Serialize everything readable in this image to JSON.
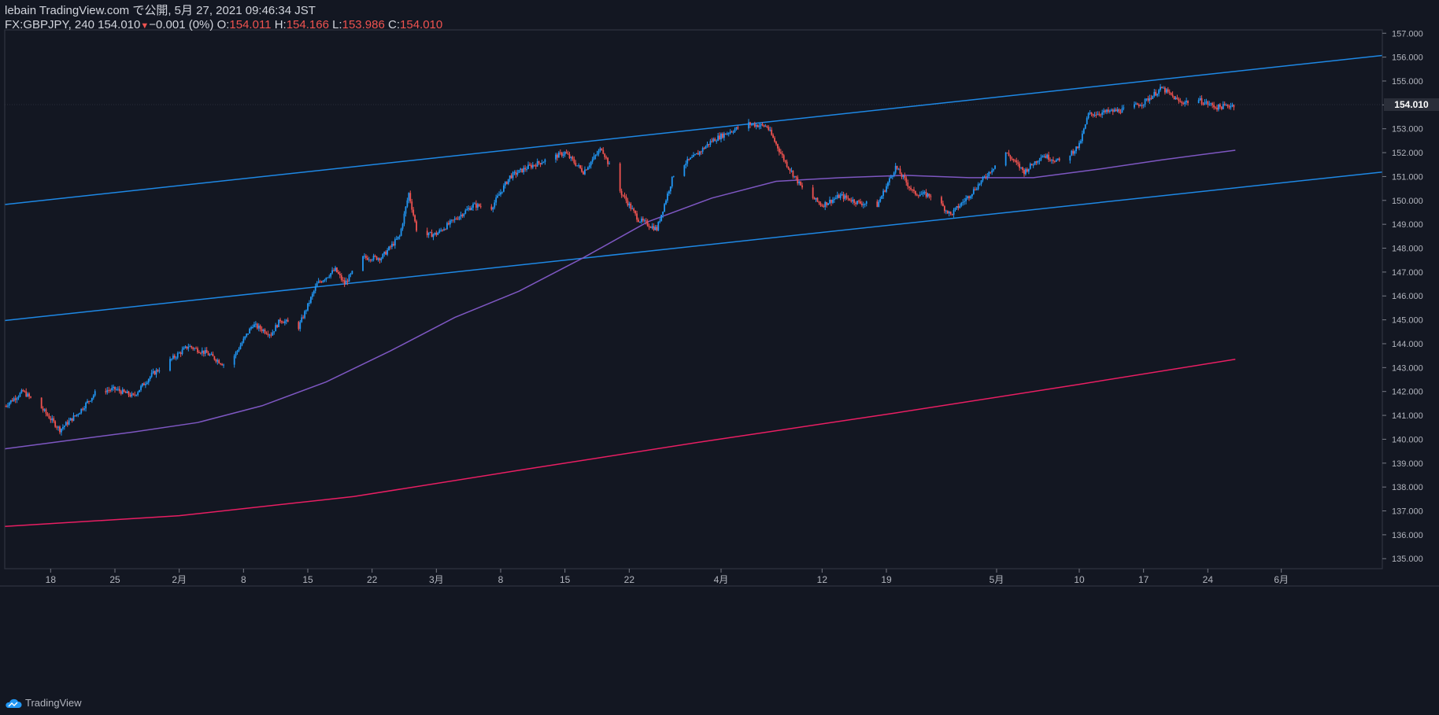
{
  "header": {
    "line1": "lebain TradingView.com で公開, 5月 27, 2021 09:46:34 JST",
    "symbol": "FX:GBPJPY, 240",
    "last": "154.010",
    "change": "−0.001 (0%)",
    "o_label": "O:",
    "o_value": "154.011",
    "h_label": "H:",
    "h_value": "154.166",
    "l_label": "L:",
    "l_value": "153.986",
    "c_label": "C:",
    "c_value": "154.010"
  },
  "footer": {
    "brand": "TradingView"
  },
  "colors": {
    "background": "#131722",
    "up": "#2196f3",
    "down": "#ef5350",
    "channel": "#1e88e5",
    "ma_fast": "#7e57c2",
    "ma_slow": "#e91e63",
    "axis_text": "#b2b5be",
    "grid": "#363a45"
  },
  "chart_data": {
    "type": "candlestick",
    "title": "FX:GBPJPY, 240",
    "xlabel": "",
    "ylabel": "",
    "ylim": [
      134.58,
      157.14
    ],
    "x_domain": [
      "2021-01-13",
      "2021-06-12"
    ],
    "y_ticks": [
      "135.000",
      "136.000",
      "137.000",
      "138.000",
      "139.000",
      "140.000",
      "141.000",
      "142.000",
      "143.000",
      "144.000",
      "145.000",
      "146.000",
      "147.000",
      "148.000",
      "149.000",
      "150.000",
      "151.000",
      "152.000",
      "153.000",
      "154.000",
      "155.000",
      "156.000",
      "157.000"
    ],
    "x_ticks": [
      {
        "date": "2021-01-18",
        "label": "18"
      },
      {
        "date": "2021-01-25",
        "label": "25"
      },
      {
        "date": "2021-02-01",
        "label": "2月"
      },
      {
        "date": "2021-02-08",
        "label": "8"
      },
      {
        "date": "2021-02-15",
        "label": "15"
      },
      {
        "date": "2021-02-22",
        "label": "22"
      },
      {
        "date": "2021-03-01",
        "label": "3月"
      },
      {
        "date": "2021-03-08",
        "label": "8"
      },
      {
        "date": "2021-03-15",
        "label": "15"
      },
      {
        "date": "2021-03-22",
        "label": "22"
      },
      {
        "date": "2021-04-01",
        "label": "4月"
      },
      {
        "date": "2021-04-12",
        "label": "12"
      },
      {
        "date": "2021-04-19",
        "label": "19"
      },
      {
        "date": "2021-05-01",
        "label": "5月"
      },
      {
        "date": "2021-05-10",
        "label": "10"
      },
      {
        "date": "2021-05-17",
        "label": "17"
      },
      {
        "date": "2021-05-24",
        "label": "24"
      },
      {
        "date": "2021-06-01",
        "label": "6月"
      }
    ],
    "last_price": "154.010",
    "price_path": [
      [
        "2021-01-13",
        141.4
      ],
      [
        "2021-01-15",
        142.0
      ],
      [
        "2021-01-17",
        141.3
      ],
      [
        "2021-01-19",
        140.4
      ],
      [
        "2021-01-21",
        141.1
      ],
      [
        "2021-01-23",
        142.0
      ],
      [
        "2021-01-25",
        142.1
      ],
      [
        "2021-01-27",
        141.8
      ],
      [
        "2021-01-29",
        142.7
      ],
      [
        "2021-01-31",
        143.3
      ],
      [
        "2021-02-02",
        143.9
      ],
      [
        "2021-02-04",
        143.6
      ],
      [
        "2021-02-06",
        143.1
      ],
      [
        "2021-02-07",
        143.5
      ],
      [
        "2021-02-09",
        144.8
      ],
      [
        "2021-02-11",
        144.4
      ],
      [
        "2021-02-12",
        145.0
      ],
      [
        "2021-02-14",
        144.7
      ],
      [
        "2021-02-16",
        146.5
      ],
      [
        "2021-02-18",
        147.1
      ],
      [
        "2021-02-19",
        146.5
      ],
      [
        "2021-02-21",
        147.6
      ],
      [
        "2021-02-23",
        147.6
      ],
      [
        "2021-02-25",
        148.5
      ],
      [
        "2021-02-26",
        150.3
      ],
      [
        "2021-02-27",
        148.5
      ],
      [
        "2021-03-01",
        148.6
      ],
      [
        "2021-03-03",
        149.2
      ],
      [
        "2021-03-05",
        149.8
      ],
      [
        "2021-03-07",
        149.7
      ],
      [
        "2021-03-09",
        151.0
      ],
      [
        "2021-03-11",
        151.4
      ],
      [
        "2021-03-13",
        151.7
      ],
      [
        "2021-03-15",
        152.0
      ],
      [
        "2021-03-17",
        151.2
      ],
      [
        "2021-03-19",
        152.2
      ],
      [
        "2021-03-21",
        150.4
      ],
      [
        "2021-03-23",
        149.2
      ],
      [
        "2021-03-25",
        148.8
      ],
      [
        "2021-03-27",
        151.3
      ],
      [
        "2021-03-29",
        151.8
      ],
      [
        "2021-03-31",
        152.5
      ],
      [
        "2021-04-02",
        152.9
      ],
      [
        "2021-04-04",
        153.2
      ],
      [
        "2021-04-06",
        153.1
      ],
      [
        "2021-04-08",
        151.6
      ],
      [
        "2021-04-10",
        150.4
      ],
      [
        "2021-04-12",
        149.8
      ],
      [
        "2021-04-14",
        150.2
      ],
      [
        "2021-04-16",
        149.9
      ],
      [
        "2021-04-18",
        149.8
      ],
      [
        "2021-04-20",
        151.4
      ],
      [
        "2021-04-22",
        150.3
      ],
      [
        "2021-04-24",
        150.2
      ],
      [
        "2021-04-26",
        149.4
      ],
      [
        "2021-04-28",
        150.2
      ],
      [
        "2021-04-30",
        151.1
      ],
      [
        "2021-05-02",
        152.0
      ],
      [
        "2021-05-04",
        151.2
      ],
      [
        "2021-05-06",
        151.9
      ],
      [
        "2021-05-08",
        151.6
      ],
      [
        "2021-05-10",
        152.3
      ],
      [
        "2021-05-11",
        153.6
      ],
      [
        "2021-05-13",
        153.7
      ],
      [
        "2021-05-15",
        153.8
      ],
      [
        "2021-05-17",
        154.1
      ],
      [
        "2021-05-19",
        154.7
      ],
      [
        "2021-05-21",
        154.1
      ],
      [
        "2021-05-23",
        154.2
      ],
      [
        "2021-05-25",
        153.9
      ],
      [
        "2021-05-27",
        154.01
      ]
    ],
    "series": [
      {
        "name": "channel-upper",
        "type": "line",
        "x": [
          "2021-01-13",
          "2021-06-12"
        ],
        "values": [
          149.83,
          156.07
        ]
      },
      {
        "name": "channel-lower",
        "type": "line",
        "x": [
          "2021-01-13",
          "2021-06-12"
        ],
        "values": [
          144.97,
          151.19
        ]
      },
      {
        "name": "ma-fast",
        "type": "line",
        "x": [
          "2021-01-13",
          "2021-01-20",
          "2021-01-27",
          "2021-02-03",
          "2021-02-10",
          "2021-02-17",
          "2021-02-24",
          "2021-03-03",
          "2021-03-10",
          "2021-03-17",
          "2021-03-24",
          "2021-03-31",
          "2021-04-07",
          "2021-04-14",
          "2021-04-21",
          "2021-04-28",
          "2021-05-05",
          "2021-05-12",
          "2021-05-19",
          "2021-05-27"
        ],
        "values": [
          139.6,
          139.95,
          140.3,
          140.7,
          141.4,
          142.4,
          143.7,
          145.1,
          146.2,
          147.6,
          149.1,
          150.1,
          150.8,
          150.95,
          151.05,
          150.95,
          150.95,
          151.3,
          151.7,
          152.1
        ]
      },
      {
        "name": "ma-slow",
        "type": "line",
        "x": [
          "2021-01-13",
          "2021-02-01",
          "2021-02-20",
          "2021-03-10",
          "2021-03-30",
          "2021-04-20",
          "2021-05-10",
          "2021-05-27"
        ],
        "values": [
          136.35,
          136.8,
          137.6,
          138.7,
          139.9,
          141.1,
          142.3,
          143.35
        ]
      }
    ]
  }
}
